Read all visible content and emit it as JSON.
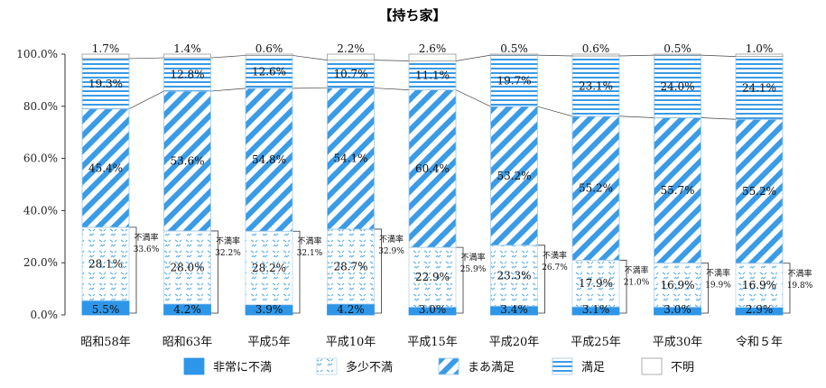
{
  "chart_data": {
    "type": "bar",
    "stacked": true,
    "percent": true,
    "title": "【持ち家】",
    "xlabel": "",
    "ylabel": "",
    "ylim": [
      0,
      100
    ],
    "yticks": [
      "0.0%",
      "20.0%",
      "40.0%",
      "60.0%",
      "80.0%",
      "100.0%"
    ],
    "categories": [
      "昭和58年",
      "昭和63年",
      "平成5年",
      "平成10年",
      "平成15年",
      "平成20年",
      "平成25年",
      "平成30年",
      "令和５年"
    ],
    "series": [
      {
        "name": "非常に不満",
        "values": [
          5.5,
          4.2,
          3.9,
          4.2,
          3.0,
          3.4,
          3.1,
          3.0,
          2.9
        ],
        "labels": [
          "5.5%",
          "4.2%",
          "3.9%",
          "4.2%",
          "3.0%",
          "3.4%",
          "3.1%",
          "3.0%",
          "2.9%"
        ]
      },
      {
        "name": "多少不満",
        "values": [
          28.1,
          28.0,
          28.2,
          28.7,
          22.9,
          23.3,
          17.9,
          16.9,
          16.9
        ],
        "labels": [
          "28.1%",
          "28.0%",
          "28.2%",
          "28.7%",
          "22.9%",
          "23.3%",
          "17.9%",
          "16.9%",
          "16.9%"
        ]
      },
      {
        "name": "まあ満足",
        "values": [
          45.4,
          53.6,
          54.8,
          54.1,
          60.4,
          53.2,
          55.2,
          55.7,
          55.2
        ],
        "labels": [
          "45.4%",
          "53.6%",
          "54.8%",
          "54.1%",
          "60.4%",
          "53.2%",
          "55.2%",
          "55.7%",
          "55.2%"
        ]
      },
      {
        "name": "満足",
        "values": [
          19.3,
          12.8,
          12.6,
          10.7,
          11.1,
          19.7,
          23.1,
          24.0,
          24.1
        ],
        "labels": [
          "19.3%",
          "12.8%",
          "12.6%",
          "10.7%",
          "11.1%",
          "19.7%",
          "23.1%",
          "24.0%",
          "24.1%"
        ]
      },
      {
        "name": "不明",
        "values": [
          1.7,
          1.4,
          0.6,
          2.2,
          2.6,
          0.5,
          0.6,
          0.5,
          1.0
        ],
        "labels": [
          "1.7%",
          "1.4%",
          "0.6%",
          "2.2%",
          "2.6%",
          "0.5%",
          "0.6%",
          "0.5%",
          "1.0%"
        ]
      }
    ],
    "dissatisfaction": {
      "label": "不満率",
      "values": [
        33.6,
        32.2,
        32.1,
        32.9,
        25.9,
        26.7,
        21.0,
        19.9,
        19.8
      ],
      "labels": [
        "33.6%",
        "32.2%",
        "32.1%",
        "32.9%",
        "25.9%",
        "26.7%",
        "21.0%",
        "19.9%",
        "19.8%"
      ]
    },
    "legend_position": "bottom",
    "grid": false,
    "colors": {
      "非常に不満": "#2e96e8",
      "多少不満": "#5aaee8",
      "まあ満足": "#3a9be6",
      "満足": "#3a9be6",
      "不明": "#ffffff"
    }
  }
}
